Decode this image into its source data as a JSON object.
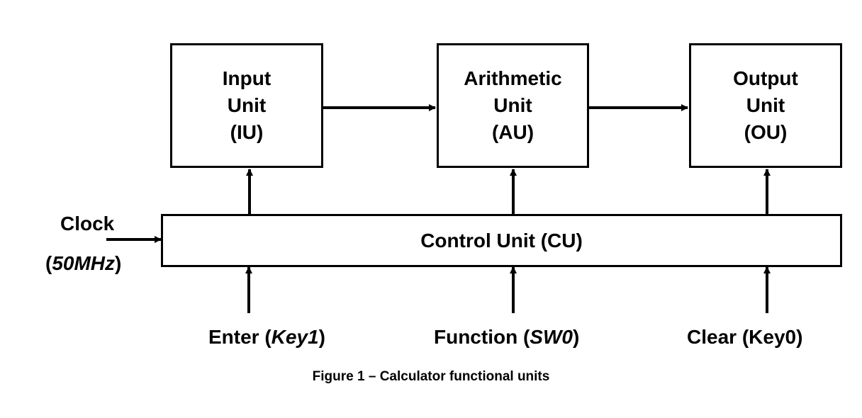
{
  "units": {
    "input": {
      "line1": "Input",
      "line2": "Unit",
      "line3": "(IU)"
    },
    "arithmetic": {
      "line1": "Arithmetic",
      "line2": "Unit",
      "line3": "(AU)"
    },
    "output": {
      "line1": "Output",
      "line2": "Unit",
      "line3": "(OU)"
    }
  },
  "control_unit": {
    "label": "Control Unit (CU)"
  },
  "clock": {
    "label": "Clock",
    "open_paren": "(",
    "freq": "50MHz",
    "close_paren": ")"
  },
  "inputs": {
    "enter": {
      "name": "Enter (",
      "key": "Key1",
      "close": ")"
    },
    "function": {
      "name": "Function (",
      "key": "SW0",
      "close": ")"
    },
    "clear": {
      "label": "Clear (Key0)"
    }
  },
  "caption": "Figure 1 – Calculator functional units",
  "colors": {
    "line": "#000000",
    "background": "#ffffff"
  }
}
